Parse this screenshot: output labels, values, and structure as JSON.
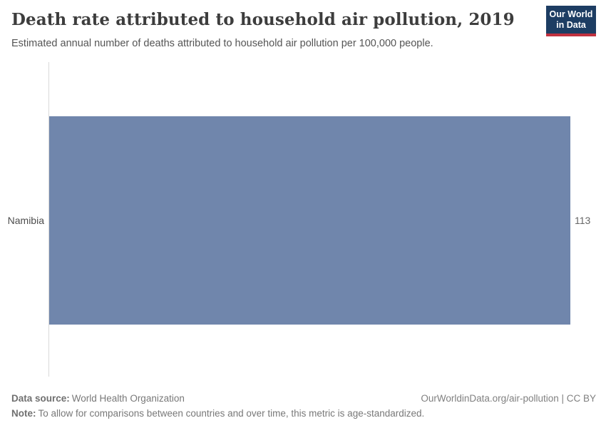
{
  "header": {
    "title": "Death rate attributed to household air pollution, 2019",
    "subtitle": "Estimated annual number of deaths attributed to household air pollution per 100,000 people.",
    "logo": {
      "line1": "Our World",
      "line2": "in Data"
    }
  },
  "chart_data": {
    "type": "bar",
    "orientation": "horizontal",
    "title": "Death rate attributed to household air pollution, 2019",
    "subtitle": "Estimated annual number of deaths attributed to household air pollution per 100,000 people.",
    "categories": [
      "Namibia"
    ],
    "values": [
      113
    ],
    "xlabel": "",
    "ylabel": "",
    "xlim": [
      0,
      113
    ],
    "grid": false,
    "legend": "none"
  },
  "footer": {
    "data_source_label": "Data source:",
    "data_source_value": "World Health Organization",
    "note_label": "Note:",
    "note_value": "To allow for comparisons between countries and over time, this metric is age-standardized.",
    "link": "OurWorldinData.org/air-pollution | CC BY"
  },
  "colors": {
    "bar": "#7086ac",
    "logo_bg": "#1d3d63",
    "logo_accent": "#c0313f",
    "axis_line": "#d9d9d9"
  }
}
